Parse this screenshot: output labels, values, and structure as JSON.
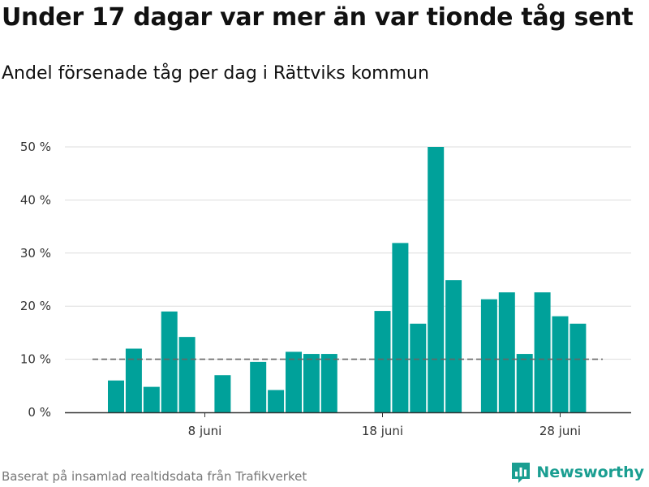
{
  "title": "Under 17 dagar var mer än var tionde tåg sent",
  "subtitle": "Andel försenade tåg per dag i Rättviks kommun",
  "footer": {
    "source": "Baserat på insamlad realtidsdata från Trafikverket",
    "brand": "Newsworthy"
  },
  "colors": {
    "bar": "#00a19a",
    "grid": "#dddddd",
    "reference_line": "#666666",
    "axis": "#333333",
    "brand": "#1a9e91"
  },
  "chart_data": {
    "type": "bar",
    "title": "Under 17 dagar var mer än var tionde tåg sent",
    "subtitle": "Andel försenade tåg per dag i Rättviks kommun",
    "xlabel": "",
    "ylabel": "",
    "x_unit": "day of June",
    "x": [
      1,
      2,
      3,
      4,
      5,
      6,
      7,
      8,
      9,
      10,
      11,
      12,
      13,
      14,
      15,
      16,
      17,
      18,
      19,
      20,
      21,
      22,
      23,
      24,
      25,
      26,
      27,
      28,
      29,
      30
    ],
    "values": [
      null,
      null,
      6,
      12,
      4.8,
      19,
      14.2,
      null,
      7,
      null,
      9.5,
      4.2,
      11.4,
      11,
      11,
      null,
      null,
      19.1,
      31.9,
      16.7,
      50,
      24.9,
      null,
      21.3,
      22.6,
      11,
      22.6,
      18.1,
      16.7,
      null
    ],
    "ylim": [
      0,
      50
    ],
    "yticks": [
      0,
      10,
      20,
      30,
      40,
      50
    ],
    "ytick_labels": [
      "0 %",
      "10 %",
      "20 %",
      "30 %",
      "40 %",
      "50 %"
    ],
    "xticks": [
      8,
      18,
      28
    ],
    "xtick_labels": [
      "8 juni",
      "18 juni",
      "28 juni"
    ],
    "reference_line": {
      "value": 10,
      "style": "dashed"
    },
    "grid": true,
    "legend": "none"
  }
}
